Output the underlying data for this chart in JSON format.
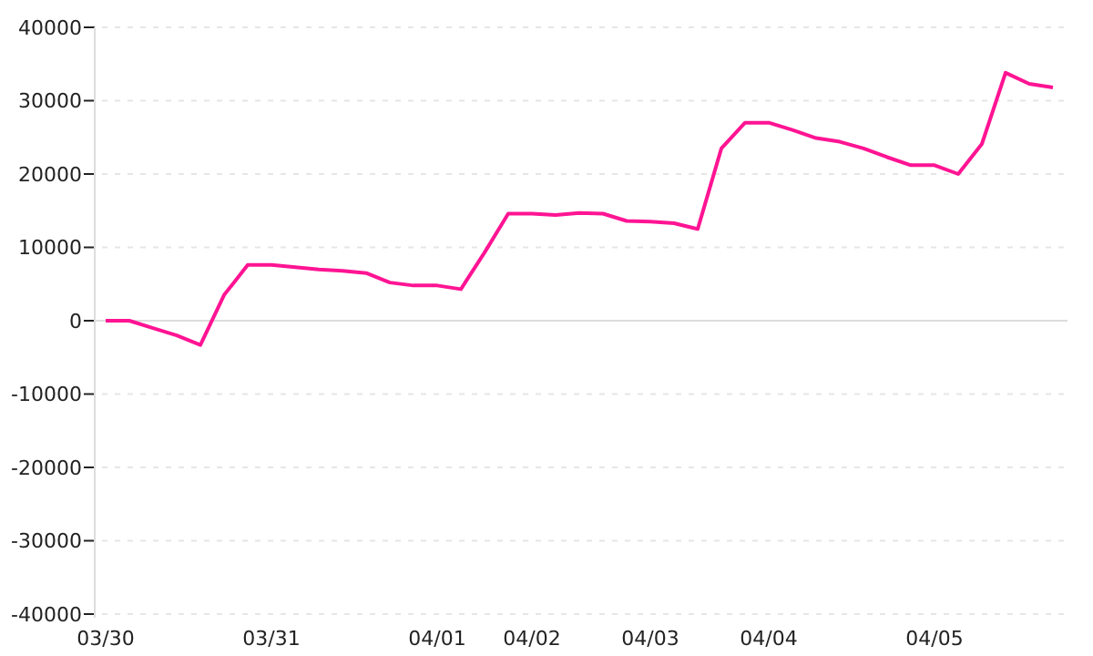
{
  "chart_data": {
    "type": "line",
    "categories": [
      "03/30",
      null,
      null,
      null,
      null,
      null,
      null,
      "03/31",
      null,
      null,
      null,
      null,
      null,
      null,
      "04/01",
      null,
      null,
      null,
      "04/02",
      null,
      null,
      null,
      null,
      "04/03",
      null,
      null,
      null,
      null,
      "04/04",
      null,
      null,
      null,
      null,
      null,
      null,
      "04/05",
      null,
      null,
      null,
      null,
      null
    ],
    "series": [
      {
        "color": "#ff1493",
        "values": [
          0,
          0,
          -1000,
          -2000,
          -3300,
          3500,
          7600,
          7600,
          7300,
          7000,
          6800,
          6500,
          5200,
          4800,
          4800,
          4300,
          9300,
          14600,
          14600,
          14400,
          14700,
          14600,
          13600,
          13500,
          13300,
          12500,
          23500,
          27000,
          27000,
          26000,
          24900,
          24400,
          23500,
          22300,
          21200,
          21200,
          20000,
          24100,
          33800,
          32300,
          31800
        ]
      }
    ],
    "ylim": [
      -40000,
      40000
    ],
    "yticks": [
      -40000,
      -30000,
      -20000,
      -10000,
      0,
      10000,
      20000,
      30000,
      40000
    ],
    "grid": "y",
    "line_style": "solid"
  }
}
